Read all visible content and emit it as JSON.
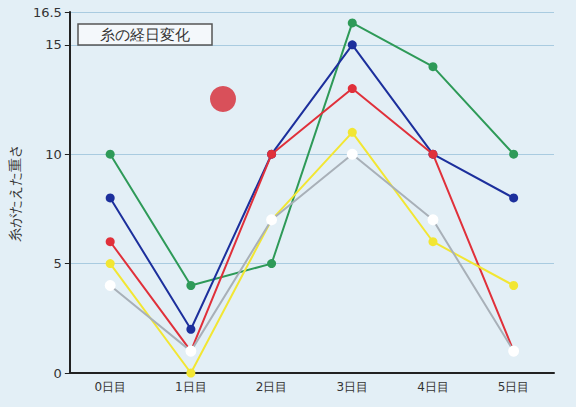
{
  "chart_data": {
    "type": "line",
    "title": "糸の経日変化",
    "y_label": "糸がたえた重さ",
    "categories": [
      "0日目",
      "1日目",
      "2日目",
      "3日目",
      "4日目",
      "5日目"
    ],
    "series": [
      {
        "color": "#2e9a58",
        "marker": "circle",
        "values": [
          10,
          4,
          5,
          16,
          14,
          10
        ]
      },
      {
        "color": "#1c2f9c",
        "marker": "circle",
        "values": [
          8,
          2,
          10,
          15,
          10,
          8
        ]
      },
      {
        "color": "#e0303a",
        "marker": "circle",
        "values": [
          6,
          1,
          10,
          13,
          10,
          1
        ]
      },
      {
        "color": "#f2e633",
        "marker": "circle",
        "values": [
          5,
          0,
          7,
          11,
          6,
          4
        ]
      },
      {
        "color": "#a8b0b8",
        "marker": "open_circle",
        "values": [
          4,
          1,
          7,
          10,
          7,
          1
        ]
      }
    ],
    "ylim": [
      0,
      16.5
    ],
    "yticks": [
      0,
      5,
      10,
      15
    ],
    "grid": true
  }
}
